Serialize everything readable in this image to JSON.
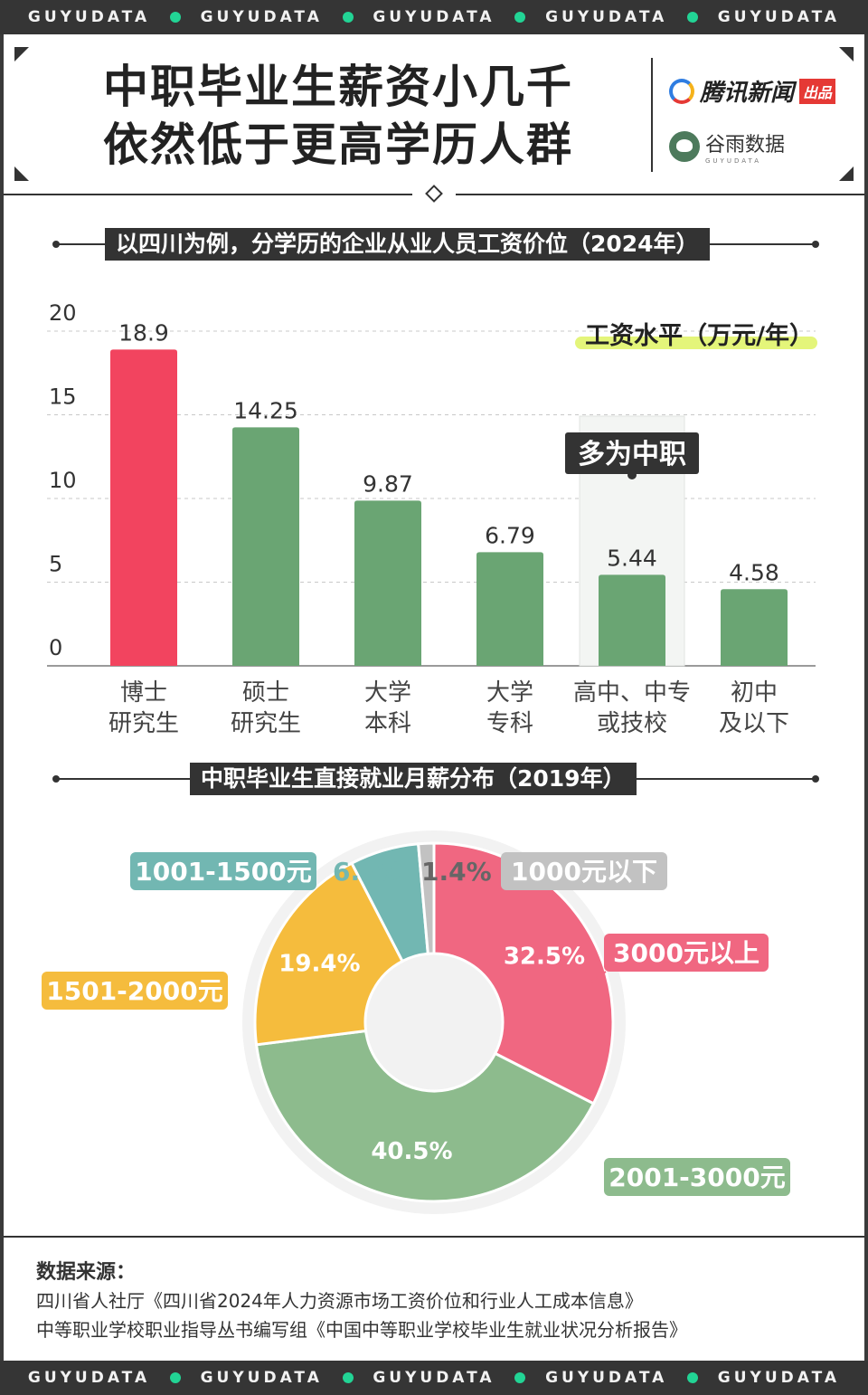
{
  "brand_strip": [
    "GUYUDATA",
    "GUYUDATA",
    "GUYUDATA",
    "GUYUDATA",
    "GUYUDATA"
  ],
  "header": {
    "title_line1": "中职毕业生薪资小几千",
    "title_line2": "依然低于更高学历人群",
    "logo1_name": "腾讯新闻",
    "logo1_tag": "出品",
    "logo2_name": "谷雨数据",
    "logo2_sub": "GUYUDATA"
  },
  "colors": {
    "red": "#f2445f",
    "green": "#6aa573",
    "pie_red": "#f06781",
    "pie_green": "#8dbb8d",
    "pie_yellow": "#f5bc3d",
    "pie_teal": "#72b7b2",
    "pie_gray": "#c2c2c2",
    "highlight": "#e4f57a",
    "dark": "#333333"
  },
  "chart_data": [
    {
      "type": "bar",
      "title": "以四川为例，分学历的企业从业人员工资价位（2024年）",
      "ylabel": "工资水平（万元/年）",
      "categories": [
        "博士研究生",
        "硕士研究生",
        "大学本科",
        "大学专科",
        "高中、中专或技校",
        "初中及以下"
      ],
      "category_lines": [
        [
          "博士",
          "研究生"
        ],
        [
          "硕士",
          "研究生"
        ],
        [
          "大学",
          "本科"
        ],
        [
          "大学",
          "专科"
        ],
        [
          "高中、中专",
          "或技校"
        ],
        [
          "初中",
          "及以下"
        ]
      ],
      "values": [
        18.9,
        14.25,
        9.87,
        6.79,
        5.44,
        4.58
      ],
      "value_labels": [
        "18.9",
        "14.25",
        "9.87",
        "6.79",
        "5.44",
        "4.58"
      ],
      "bar_colors": [
        "#f2445f",
        "#6aa573",
        "#6aa573",
        "#6aa573",
        "#6aa573",
        "#6aa573"
      ],
      "ylim": [
        0,
        20
      ],
      "yticks": [
        0,
        5,
        10,
        15,
        20
      ],
      "grid": true,
      "annotation": {
        "text": "多为中职",
        "category_index": 4
      }
    },
    {
      "type": "pie",
      "title": "中职毕业生直接就业月薪分布（2019年）",
      "slices": [
        {
          "label": "3000元以上",
          "value": 32.5,
          "pct": "32.5%",
          "color": "#f06781"
        },
        {
          "label": "2001-3000元",
          "value": 40.5,
          "pct": "40.5%",
          "color": "#8dbb8d"
        },
        {
          "label": "1501-2000元",
          "value": 19.4,
          "pct": "19.4%",
          "color": "#f5bc3d"
        },
        {
          "label": "1001-1500元",
          "value": 6.2,
          "pct": "6.2%",
          "color": "#72b7b2"
        },
        {
          "label": "1000元以下",
          "value": 1.4,
          "pct": "1.4%",
          "color": "#c2c2c2"
        }
      ]
    }
  ],
  "source": {
    "heading": "数据来源：",
    "line1": "四川省人社厅《四川省2024年人力资源市场工资价位和行业人工成本信息》",
    "line2": "中等职业学校职业指导丛书编写组《中国中等职业学校毕业生就业状况分析报告》"
  }
}
